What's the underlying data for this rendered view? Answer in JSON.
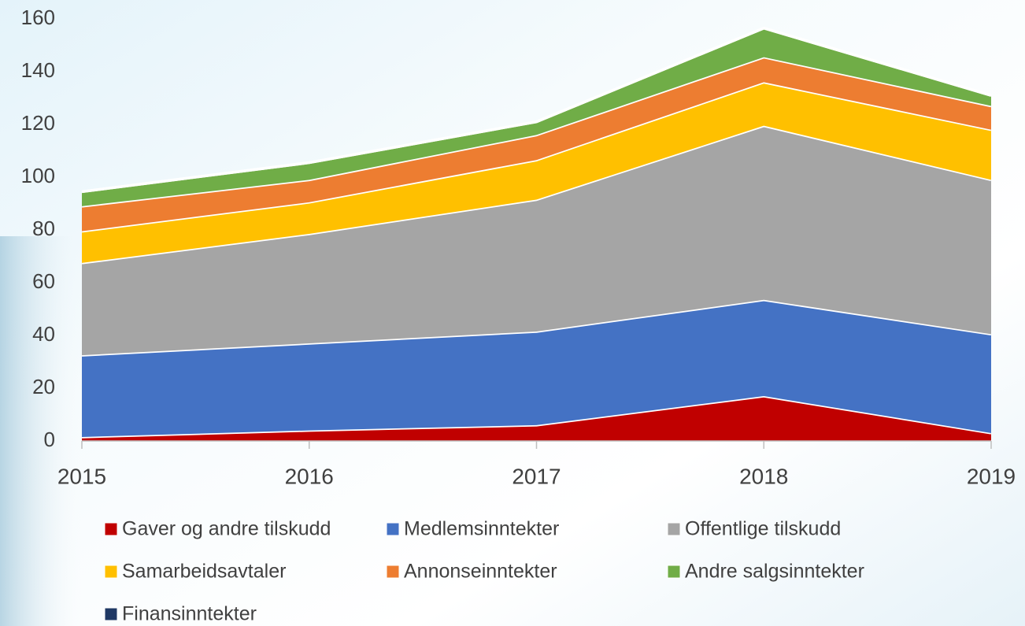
{
  "chart_data": {
    "type": "stacked-area",
    "categories": [
      "2015",
      "2016",
      "2017",
      "2018",
      "2019"
    ],
    "series": [
      {
        "name": "Gaver og andre tilskudd",
        "color": "#c00000",
        "values": [
          1.5,
          4,
          6,
          17,
          3
        ]
      },
      {
        "name": "Medlemsinntekter",
        "color": "#4472c4",
        "values": [
          31,
          33,
          35.5,
          36.5,
          37.5
        ]
      },
      {
        "name": "Offentlige tilskudd",
        "color": "#a5a5a5",
        "values": [
          35,
          41.5,
          50,
          66,
          58.5
        ]
      },
      {
        "name": "Samarbeidsavtaler",
        "color": "#ffc000",
        "values": [
          12,
          12,
          15,
          16.5,
          19
        ]
      },
      {
        "name": "Annonseinntekter",
        "color": "#ed7d31",
        "values": [
          9.5,
          8.5,
          9.5,
          9.5,
          9
        ]
      },
      {
        "name": "Andre salgsinntekter",
        "color": "#70ad47",
        "values": [
          5.5,
          6.5,
          5,
          11,
          4
        ]
      },
      {
        "name": "Finansinntekter",
        "color": "#1f3864",
        "values": [
          0,
          0,
          0,
          0,
          0
        ]
      }
    ],
    "ylim": [
      0,
      160
    ],
    "yticks": [
      0,
      20,
      40,
      60,
      80,
      100,
      120,
      140,
      160
    ],
    "grid": false
  }
}
